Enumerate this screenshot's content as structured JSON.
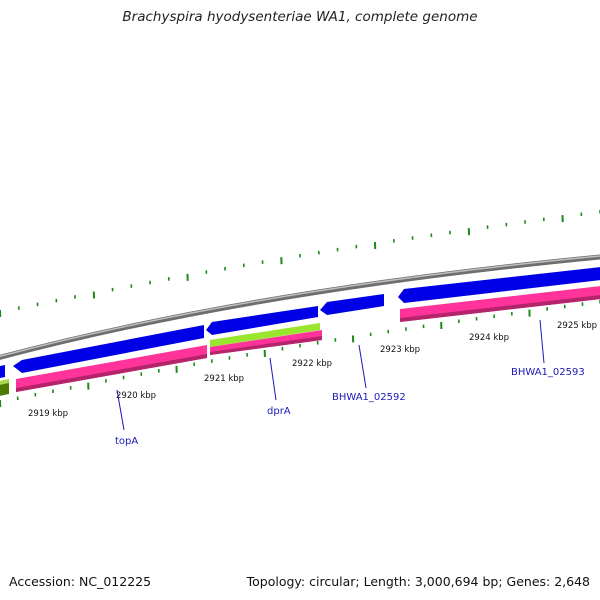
{
  "title": "Brachyspira hyodysenteriae WA1, complete genome",
  "footer": {
    "accession": "Accession: NC_012225",
    "topology": "Topology: circular; Length: 3,000,694 bp; Genes: 2,648"
  },
  "scale_labels": [
    "2919 kbp",
    "2920 kbp",
    "2921 kbp",
    "2922 kbp",
    "2923 kbp",
    "2924 kbp",
    "2925 kbp"
  ],
  "gene_labels": [
    "topA",
    "dprA",
    "BHWA1_02592",
    "BHWA1_02593"
  ],
  "colors": {
    "backbone": "#8c8c8c",
    "cds": "#0000e6",
    "feature_pink": "#ff3399",
    "feature_green": "#99e62e",
    "gc_dark": "#4d7a00",
    "tick": "#1a8a1a",
    "label": "#1a1ab8"
  }
}
